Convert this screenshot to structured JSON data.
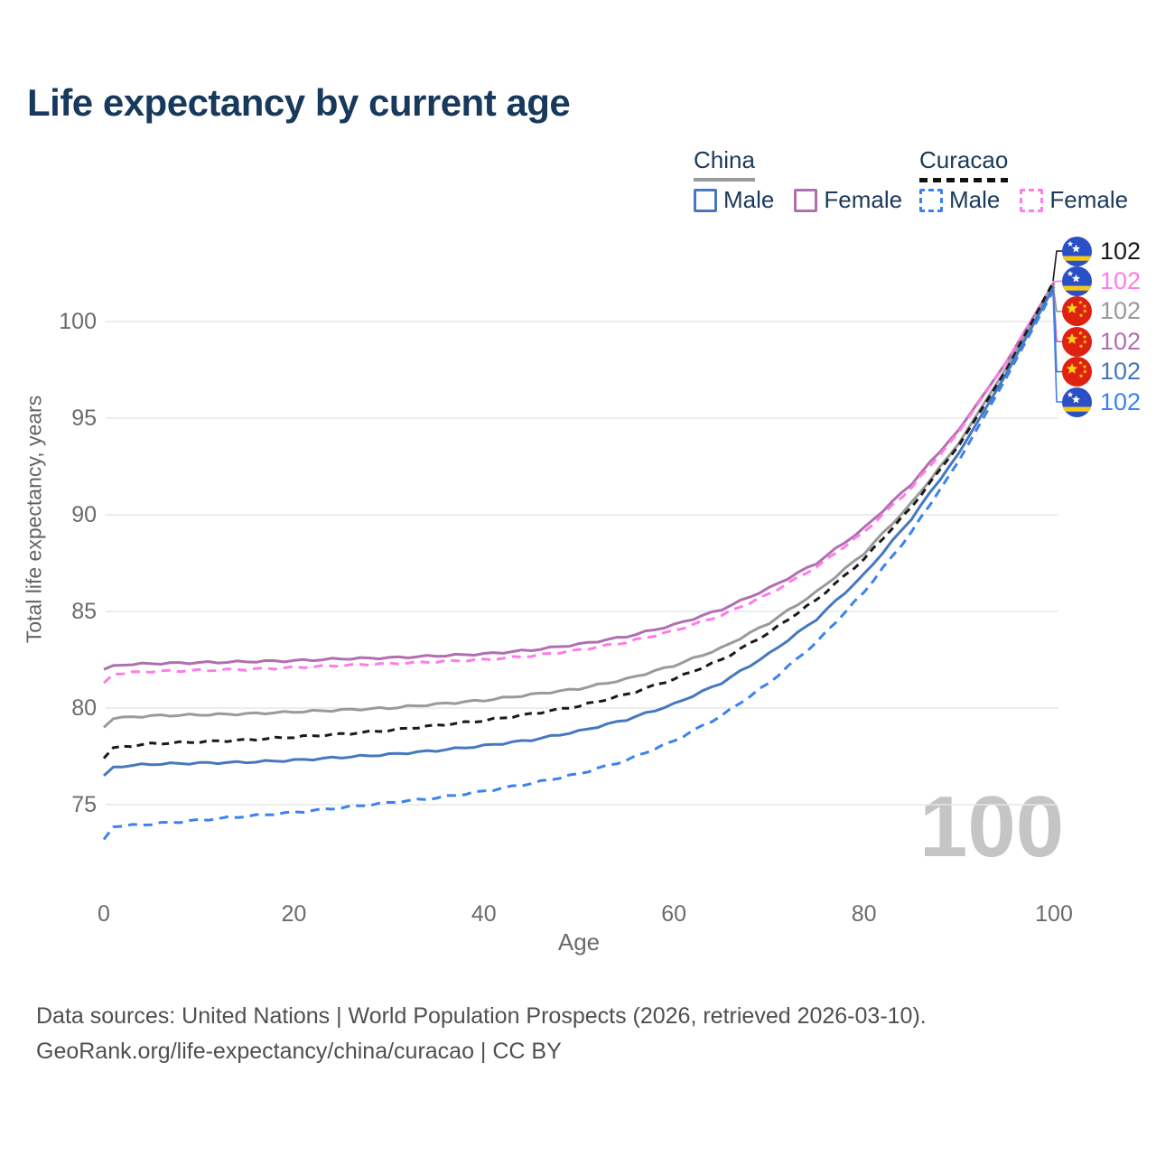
{
  "header": {
    "title": "Life expectancy by current age"
  },
  "legend": {
    "groups": [
      {
        "id": "china",
        "label": "China",
        "line_style": "solid",
        "underline_color": "#9a9a9a",
        "items": [
          {
            "label": "Male",
            "color": "#4678be",
            "dashed": false
          },
          {
            "label": "Female",
            "color": "#b06fb0",
            "dashed": false
          }
        ]
      },
      {
        "id": "curacao",
        "label": "Curacao",
        "line_style": "dashed",
        "underline_color": "#111111",
        "items": [
          {
            "label": "Male",
            "color": "#3b82ee",
            "dashed": true
          },
          {
            "label": "Female",
            "color": "#ff7ce8",
            "dashed": true
          }
        ]
      }
    ]
  },
  "chart_data": {
    "type": "line",
    "title": "Life expectancy by current age",
    "xlabel": "Age",
    "ylabel": "Total life expectancy, years",
    "x_ticks": [
      0,
      20,
      40,
      60,
      80,
      100
    ],
    "y_ticks": [
      75,
      80,
      85,
      90,
      95,
      100
    ],
    "xlim": [
      0,
      100
    ],
    "ylim": [
      73,
      103
    ],
    "grid": "horizontal",
    "legend_position": "top-right",
    "ages": [
      0,
      1,
      2,
      5,
      10,
      15,
      20,
      25,
      30,
      35,
      40,
      45,
      50,
      55,
      60,
      65,
      70,
      75,
      80,
      85,
      90,
      95,
      100
    ],
    "series": [
      {
        "name": "China Female",
        "country": "China",
        "sex": "Female",
        "color": "#b06fb0",
        "dashed": false,
        "values": [
          82.0,
          82.2,
          82.25,
          82.3,
          82.35,
          82.4,
          82.45,
          82.55,
          82.6,
          82.7,
          82.8,
          83.0,
          83.3,
          83.7,
          84.3,
          85.1,
          86.2,
          87.5,
          89.3,
          91.6,
          94.4,
          97.9,
          102.0
        ]
      },
      {
        "name": "Curacao Female",
        "country": "Curacao",
        "sex": "Female",
        "color": "#ff7ce8",
        "dashed": true,
        "values": [
          81.3,
          81.75,
          81.8,
          81.9,
          81.95,
          82.0,
          82.1,
          82.2,
          82.3,
          82.4,
          82.5,
          82.7,
          83.0,
          83.4,
          84.0,
          84.8,
          85.9,
          87.3,
          89.1,
          91.4,
          94.3,
          97.9,
          102.05
        ]
      },
      {
        "name": "China",
        "country": "China",
        "sex": "Both",
        "color": "#9a9a9a",
        "dashed": false,
        "values": [
          79.0,
          79.45,
          79.5,
          79.6,
          79.65,
          79.7,
          79.8,
          79.9,
          80.0,
          80.2,
          80.4,
          80.7,
          81.0,
          81.5,
          82.2,
          83.1,
          84.4,
          86.0,
          88.0,
          90.6,
          93.7,
          97.6,
          101.95
        ]
      },
      {
        "name": "Curacao",
        "country": "Curacao",
        "sex": "Both",
        "color": "#1a1a1a",
        "dashed": true,
        "values": [
          77.4,
          77.95,
          78.0,
          78.15,
          78.25,
          78.35,
          78.5,
          78.65,
          78.85,
          79.1,
          79.35,
          79.7,
          80.1,
          80.7,
          81.5,
          82.5,
          83.9,
          85.6,
          87.7,
          90.4,
          93.6,
          97.5,
          102.1
        ]
      },
      {
        "name": "China Male",
        "country": "China",
        "sex": "Male",
        "color": "#4678be",
        "dashed": false,
        "values": [
          76.5,
          76.95,
          77.0,
          77.1,
          77.15,
          77.2,
          77.3,
          77.45,
          77.6,
          77.8,
          78.05,
          78.35,
          78.8,
          79.4,
          80.2,
          81.3,
          82.8,
          84.6,
          86.9,
          89.8,
          93.2,
          97.3,
          101.8
        ]
      },
      {
        "name": "Curacao Male",
        "country": "Curacao",
        "sex": "Male",
        "color": "#3b82ee",
        "dashed": true,
        "values": [
          73.2,
          73.85,
          73.9,
          74.0,
          74.2,
          74.4,
          74.6,
          74.85,
          75.1,
          75.35,
          75.7,
          76.1,
          76.6,
          77.3,
          78.3,
          79.6,
          81.3,
          83.4,
          86.0,
          89.1,
          92.8,
          97.1,
          101.65
        ]
      }
    ],
    "end_labels": [
      {
        "flag": "curacao",
        "series": "Curacao",
        "value": "102",
        "color": "#1a1a1a"
      },
      {
        "flag": "curacao",
        "series": "Curacao Female",
        "value": "102",
        "color": "#ff7ce8"
      },
      {
        "flag": "china",
        "series": "China",
        "value": "102",
        "color": "#9a9a9a"
      },
      {
        "flag": "china",
        "series": "China Female",
        "value": "102",
        "color": "#b06fb0"
      },
      {
        "flag": "china",
        "series": "China Male",
        "value": "102",
        "color": "#4678be"
      },
      {
        "flag": "curacao",
        "series": "Curacao Male",
        "value": "102",
        "color": "#3b82ee"
      }
    ]
  },
  "watermark": {
    "age_indicator": "100"
  },
  "footer": {
    "line1": "Data sources: United Nations | World Population Prospects (2026, retrieved 2026-03-10).",
    "line2": "GeoRank.org/life-expectancy/china/curacao | CC BY"
  }
}
